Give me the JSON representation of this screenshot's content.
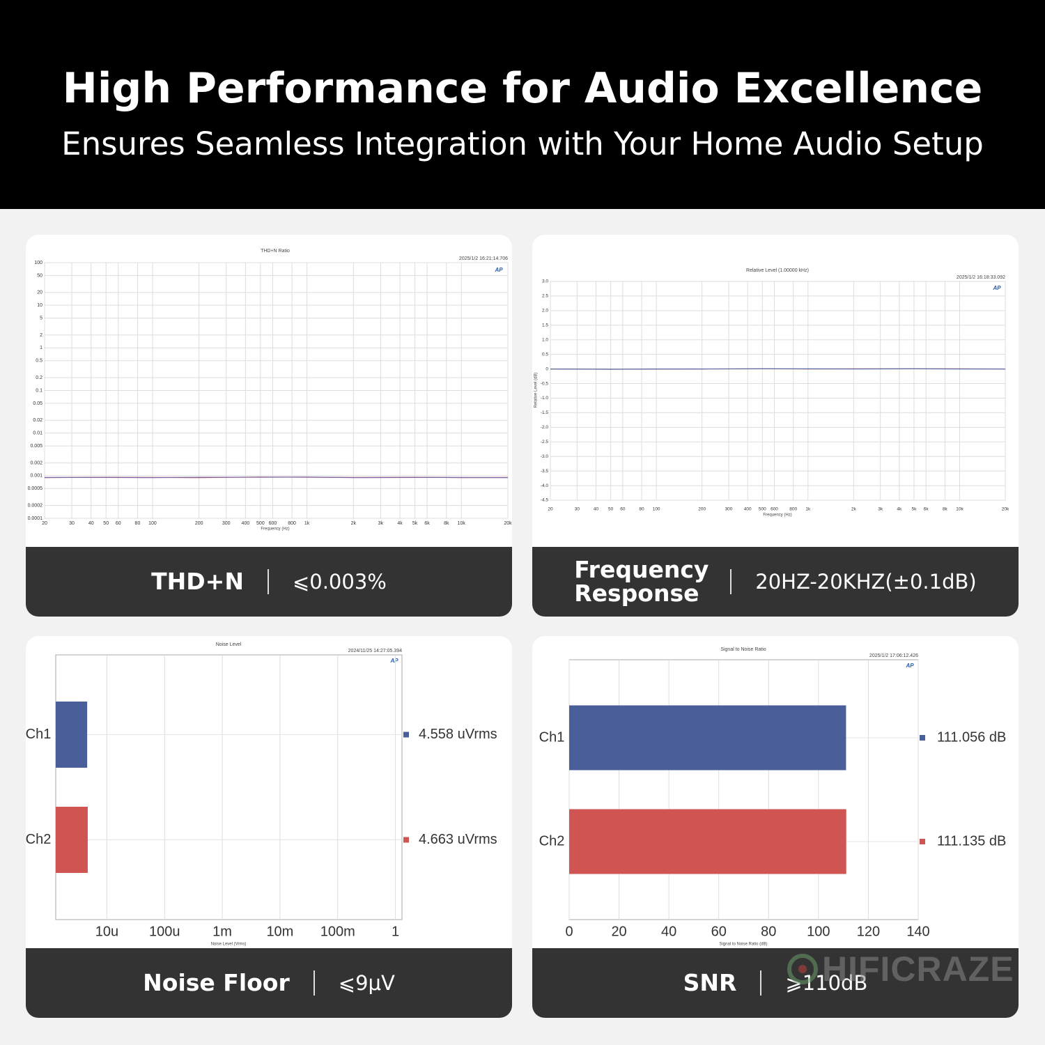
{
  "header": {
    "title": "High Performance for Audio Excellence",
    "subtitle": "Ensures Seamless Integration with Your Home Audio Setup"
  },
  "chart_data": [
    {
      "type": "line",
      "title": "THD+N Ratio",
      "timestamp": "2025/1/2 16:21:14.706",
      "logo": "AP",
      "x_label": "Frequency (Hz)",
      "xscale": "log",
      "yscale": "log",
      "grid": true,
      "xlim": [
        20,
        20000
      ],
      "xticks": [
        20,
        30,
        40,
        50,
        60,
        80,
        100,
        200,
        300,
        400,
        500,
        600,
        800,
        {
          "value": 1000,
          "label": "1k"
        },
        {
          "value": 2000,
          "label": "2k"
        },
        {
          "value": 3000,
          "label": "3k"
        },
        {
          "value": 4000,
          "label": "4k"
        },
        {
          "value": 5000,
          "label": "5k"
        },
        {
          "value": 6000,
          "label": "6k"
        },
        {
          "value": 8000,
          "label": "8k"
        },
        {
          "value": 10000,
          "label": "10k"
        },
        {
          "value": 20000,
          "label": "20k"
        }
      ],
      "ylim": [
        0.0001,
        100
      ],
      "yticks": [
        100,
        50,
        20,
        10,
        5,
        2,
        1,
        0.5,
        0.2,
        0.1,
        0.05,
        0.02,
        0.01,
        0.005,
        0.002,
        0.001,
        0.0005,
        0.0002,
        0.0001
      ],
      "x": [
        20,
        50,
        100,
        200,
        500,
        1000,
        2000,
        5000,
        10000,
        20000
      ],
      "series": [
        {
          "color": "#c0504d",
          "values": [
            0.0009,
            0.00092,
            0.00091,
            0.0009,
            0.00093,
            0.00092,
            0.00091,
            0.00092,
            0.0009,
            0.00091
          ]
        },
        {
          "color": "#7a68a8",
          "values": [
            0.00091,
            0.00091,
            0.0009,
            0.00092,
            0.00092,
            0.00093,
            0.0009,
            0.00091,
            0.00091,
            0.0009
          ]
        }
      ]
    },
    {
      "type": "line",
      "title": "Relative Level (1.00000 kHz)",
      "timestamp": "2025/1/2 16:18:33.092",
      "logo": "AP",
      "x_label": "Frequency (Hz)",
      "y_label": "Relative Level (dB)",
      "xscale": "log",
      "yscale": "linear",
      "grid": true,
      "xlim": [
        20,
        20000
      ],
      "xticks": [
        20,
        30,
        40,
        50,
        60,
        80,
        100,
        200,
        300,
        400,
        500,
        600,
        800,
        {
          "value": 1000,
          "label": "1k"
        },
        {
          "value": 2000,
          "label": "2k"
        },
        {
          "value": 3000,
          "label": "3k"
        },
        {
          "value": 4000,
          "label": "4k"
        },
        {
          "value": 5000,
          "label": "5k"
        },
        {
          "value": 6000,
          "label": "6k"
        },
        {
          "value": 8000,
          "label": "8k"
        },
        {
          "value": 10000,
          "label": "10k"
        },
        {
          "value": 20000,
          "label": "20k"
        }
      ],
      "ylim": [
        -4.5,
        3
      ],
      "yticks": [
        {
          "value": 3,
          "label": "3.0"
        },
        2.5,
        {
          "value": 2,
          "label": "2.0"
        },
        1.5,
        {
          "value": 1,
          "label": "1.0"
        },
        0.5,
        0,
        -0.5,
        {
          "value": -1,
          "label": "-1.0"
        },
        -1.5,
        {
          "value": -2,
          "label": "-2.0"
        },
        -2.5,
        {
          "value": -3,
          "label": "-3.0"
        },
        -3.5,
        {
          "value": -4,
          "label": "-4.0"
        },
        -4.5
      ],
      "x": [
        20,
        50,
        100,
        200,
        500,
        1000,
        2000,
        5000,
        10000,
        20000
      ],
      "series": [
        {
          "color": "#c0504d",
          "values": [
            0,
            -0.01,
            -0.005,
            0,
            0.005,
            0,
            0.005,
            0.005,
            0.005,
            0
          ]
        },
        {
          "color": "#5a6fa8",
          "values": [
            0,
            -0.01,
            0,
            0,
            0.005,
            0.005,
            0,
            0.005,
            0,
            0
          ]
        }
      ]
    },
    {
      "type": "barh",
      "title": "Noise Level",
      "timestamp": "2024/11/25 14:27:05.394",
      "logo": "AP",
      "x_label": "Noise Level (Vrms)",
      "xscale": "log",
      "grid": true,
      "xlim": [
        1.3e-06,
        1.3
      ],
      "xticks": [
        {
          "value": 1e-05,
          "label": "10u"
        },
        {
          "value": 0.0001,
          "label": "100u"
        },
        {
          "value": 0.001,
          "label": "1m"
        },
        {
          "value": 0.01,
          "label": "10m"
        },
        {
          "value": 0.1,
          "label": "100m"
        },
        1
      ],
      "categories": [
        "Ch1",
        "Ch2"
      ],
      "values": [
        4.558e-06,
        4.663e-06
      ],
      "value_labels": [
        "4.558  uVrms",
        "4.663  uVrms"
      ],
      "colors": [
        "#4a5f9a",
        "#d05552"
      ]
    },
    {
      "type": "barh",
      "title": "Signal to Noise Ratio",
      "timestamp": "2025/1/2 17:06:12.426",
      "logo": "AP",
      "x_label": "Signal to Noise Ratio (dB)",
      "xscale": "linear",
      "grid": true,
      "xlim": [
        0,
        140
      ],
      "xticks": [
        0,
        20,
        40,
        60,
        80,
        100,
        120,
        140
      ],
      "categories": [
        "Ch1",
        "Ch2"
      ],
      "values": [
        111.056,
        111.135
      ],
      "value_labels": [
        "111.056  dB",
        "111.135  dB"
      ],
      "colors": [
        "#4a5f9a",
        "#d05552"
      ]
    }
  ],
  "panels": [
    {
      "label": "THD+N",
      "spec": "⩽0.003%"
    },
    {
      "label": "Frequency Response",
      "spec": "20HZ-20KHZ(±0.1dB)"
    },
    {
      "label": "Noise Floor",
      "spec": "⩽9μV"
    },
    {
      "label": "SNR",
      "spec": "⩾110dB"
    }
  ],
  "watermark": "HIFICRAZE"
}
